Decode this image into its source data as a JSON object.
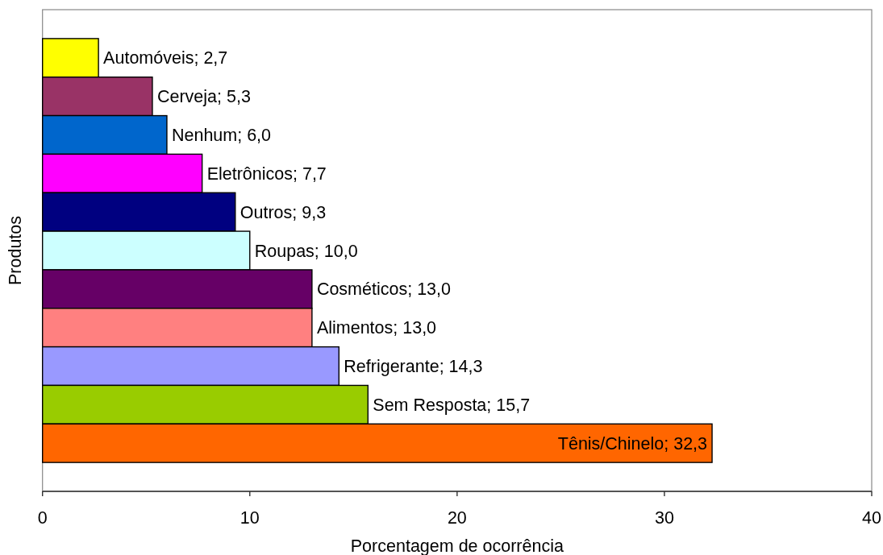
{
  "chart_data": {
    "type": "bar",
    "orientation": "horizontal",
    "xlabel": "Porcentagem de ocorrência",
    "ylabel": "Produtos",
    "categories": [
      null,
      null,
      null,
      null,
      null,
      null,
      null,
      null,
      null,
      null,
      null
    ],
    "values": [
      2.7,
      5.3,
      6.0,
      7.7,
      9.3,
      10.0,
      13.0,
      13.0,
      14.3,
      15.7,
      32.3
    ],
    "colors": [
      "#ffff00",
      "#993366",
      "#0066cc",
      "#ff00ff",
      "#000080",
      "#ccffff",
      "#660066",
      "#ff8080",
      "#9999ff",
      "#99cc00",
      "#ff6600"
    ],
    "value_labels": [
      "Automóveis; 2,7",
      "Cerveja; 5,3",
      "Nenhum; 6,0",
      "Eletrônicos; 7,7",
      "Outros; 9,3",
      "Roupas; 10,0",
      "Cosméticos; 13,0",
      "Alimentos; 13,0",
      "Refrigerante; 14,3",
      "Sem Resposta; 15,7",
      "Tênis/Chinelo; 32,3"
    ],
    "xlim": [
      0,
      40
    ],
    "xticks": [
      0,
      10,
      20,
      30,
      40
    ]
  }
}
